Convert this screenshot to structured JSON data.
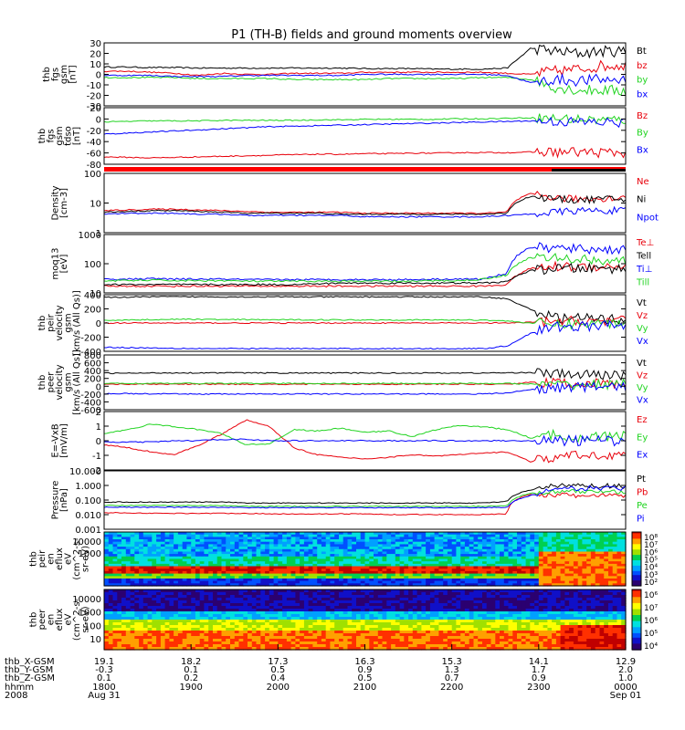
{
  "title": "P1 (TH-B) fields and ground moments overview",
  "colors": {
    "black": "#000000",
    "red": "#e8000b",
    "green": "#21d421",
    "blue": "#0000ff"
  },
  "chart_data": [
    {
      "type": "line",
      "ylabel": [
        "thb",
        "fgs",
        "gsm",
        "[nT]"
      ],
      "yticks": [
        "30",
        "20",
        "10",
        "0",
        "-10",
        "-20",
        "-30"
      ],
      "ylim": [
        -30,
        30
      ],
      "series": [
        {
          "name": "Bt",
          "color": "black",
          "values": [
            7,
            7,
            6.5,
            6.5,
            6,
            6,
            6,
            6,
            6,
            6,
            6,
            5.5,
            5.5,
            5.5,
            5,
            5,
            5,
            6,
            25,
            22,
            20,
            22,
            22
          ]
        },
        {
          "name": "bz",
          "color": "red",
          "values": [
            3,
            3,
            2,
            1,
            -1,
            1,
            0,
            0,
            1,
            1,
            1,
            2,
            2,
            2,
            2,
            2,
            2,
            1,
            0,
            3,
            5,
            8,
            9
          ]
        },
        {
          "name": "by",
          "color": "green",
          "values": [
            -3,
            -3,
            -3,
            -3,
            -4,
            -4,
            -4,
            -4,
            -5,
            -5,
            -5,
            -5,
            -4,
            -4,
            -4,
            -4,
            -3,
            -3,
            -5,
            -12,
            -15,
            -15,
            -16
          ]
        },
        {
          "name": "bx",
          "color": "blue",
          "values": [
            -1,
            -1,
            -1,
            -2,
            -2,
            -2,
            -1,
            -1,
            -1,
            -1,
            -1,
            0,
            0,
            0,
            0,
            0,
            0,
            -1,
            -8,
            -5,
            -6,
            -5,
            -5
          ]
        }
      ]
    },
    {
      "type": "line",
      "ylabel": [
        "thb",
        "fgs",
        "gsm",
        "tdso",
        "[nT]"
      ],
      "yticks": [
        "20",
        "0",
        "-20",
        "-40",
        "-60",
        "-80"
      ],
      "ylim": [
        -85,
        22
      ],
      "series": [
        {
          "name": "Bz",
          "color": "red",
          "values": [
            -71,
            -72,
            -73,
            -72,
            -71,
            -70,
            -69,
            -68,
            -67,
            -66,
            -66,
            -65,
            -65,
            -64,
            -64,
            -63,
            -63,
            -63,
            -62,
            -62,
            -62,
            -63,
            -63
          ]
        },
        {
          "name": "By",
          "color": "green",
          "values": [
            -5,
            -4,
            -3,
            -3,
            -3,
            -2,
            -2,
            -2,
            -2,
            -1,
            -1,
            0,
            0,
            0,
            0,
            1,
            1,
            2,
            3,
            2,
            0,
            -1,
            -1
          ]
        },
        {
          "name": "Bx",
          "color": "blue",
          "values": [
            -28,
            -26,
            -24,
            -22,
            -20,
            -18,
            -16,
            -14,
            -13,
            -12,
            -11,
            -10,
            -9,
            -8,
            -7,
            -6,
            -5,
            -4,
            -3,
            -4,
            -5,
            -6,
            -6
          ]
        }
      ]
    },
    {
      "type": "line",
      "log": true,
      "ylabel": [
        "Density",
        "[cm-3]"
      ],
      "yticks": [
        "100",
        "10",
        "1"
      ],
      "ylim": [
        0.5,
        400
      ],
      "series": [
        {
          "name": "Ne",
          "color": "red",
          "values": [
            6,
            6.5,
            7,
            7,
            6.5,
            6,
            5.5,
            5,
            5,
            5,
            5,
            4.5,
            4.5,
            4.5,
            4.5,
            4.5,
            4.5,
            5,
            40,
            25,
            22,
            24,
            25
          ]
        },
        {
          "name": "Ni",
          "color": "black",
          "values": [
            5,
            5.5,
            6,
            6,
            5.5,
            5,
            4.5,
            4.5,
            4.5,
            4.5,
            4,
            4,
            4,
            4,
            4,
            4,
            4,
            4.5,
            30,
            22,
            20,
            22,
            22
          ]
        },
        {
          "name": "Npot",
          "color": "blue",
          "values": [
            4,
            4.5,
            4.5,
            4.5,
            4,
            4,
            3.5,
            3.5,
            3.5,
            3.5,
            3.5,
            3,
            3,
            3,
            3,
            3,
            3,
            3.5,
            4,
            5,
            6,
            6,
            6
          ]
        }
      ]
    },
    {
      "type": "line",
      "log": true,
      "ylabel": [
        "moq13",
        "[eV]"
      ],
      "yticks": [
        "1000",
        "100",
        "10"
      ],
      "ylim": [
        8,
        1000
      ],
      "series": [
        {
          "name": "Te⊥",
          "color": "red",
          "values": [
            14,
            14,
            14,
            14,
            14,
            14,
            14,
            14,
            14,
            14,
            14,
            14,
            14,
            14,
            14,
            14,
            14,
            16,
            60,
            70,
            70,
            72,
            72
          ]
        },
        {
          "name": "Tell",
          "color": "black",
          "values": [
            16,
            16,
            16,
            16,
            16,
            16,
            16,
            16,
            16,
            17,
            18,
            18,
            18,
            18,
            18,
            18,
            18,
            20,
            50,
            60,
            60,
            60,
            60
          ]
        },
        {
          "name": "Ti⊥",
          "color": "blue",
          "values": [
            25,
            25,
            26,
            25,
            25,
            25,
            24,
            24,
            24,
            24,
            24,
            24,
            24,
            24,
            25,
            25,
            25,
            40,
            350,
            320,
            300,
            290,
            280
          ]
        },
        {
          "name": "Till",
          "color": "green",
          "values": [
            22,
            22,
            23,
            22,
            22,
            22,
            21,
            21,
            21,
            21,
            21,
            21,
            21,
            21,
            22,
            22,
            25,
            35,
            150,
            140,
            130,
            120,
            110
          ]
        }
      ]
    },
    {
      "type": "line",
      "ylabel": [
        "thb",
        "peir",
        "velocity",
        "gsm",
        "[km/s (All Qs)]"
      ],
      "yticks": [
        "400",
        "200",
        "0",
        "-200",
        "-400"
      ],
      "ylim": [
        -420,
        420
      ],
      "series": [
        {
          "name": "Vt",
          "color": "black",
          "values": [
            380,
            385,
            390,
            390,
            390,
            388,
            388,
            388,
            388,
            388,
            388,
            388,
            388,
            388,
            388,
            388,
            388,
            360,
            200,
            80,
            70,
            60,
            55
          ]
        },
        {
          "name": "Vz",
          "color": "red",
          "values": [
            0,
            0,
            0,
            0,
            0,
            0,
            0,
            0,
            0,
            0,
            0,
            0,
            0,
            0,
            0,
            0,
            0,
            0,
            10,
            20,
            30,
            30,
            30
          ]
        },
        {
          "name": "Vy",
          "color": "green",
          "values": [
            40,
            45,
            50,
            55,
            55,
            50,
            50,
            48,
            48,
            48,
            46,
            46,
            46,
            46,
            45,
            45,
            45,
            30,
            0,
            -20,
            -10,
            -5,
            0
          ]
        },
        {
          "name": "Vx",
          "color": "blue",
          "values": [
            -360,
            -365,
            -370,
            -375,
            -378,
            -380,
            -380,
            -380,
            -380,
            -380,
            -380,
            -380,
            -380,
            -380,
            -380,
            -380,
            -380,
            -340,
            -150,
            -60,
            -50,
            -40,
            -30
          ]
        }
      ]
    },
    {
      "type": "line",
      "ylabel": [
        "thb",
        "peer",
        "velocity",
        "gsm",
        "[km/s (All Qs)]"
      ],
      "yticks": [
        "800",
        "600",
        "400",
        "200",
        "0",
        "-200",
        "-400",
        "-600"
      ],
      "ylim": [
        -700,
        800
      ],
      "series": [
        {
          "name": "Vt",
          "color": "black",
          "values": [
            300,
            300,
            305,
            310,
            310,
            310,
            310,
            305,
            305,
            305,
            305,
            305,
            305,
            305,
            305,
            305,
            305,
            310,
            320,
            280,
            260,
            250,
            250
          ]
        },
        {
          "name": "Vz",
          "color": "red",
          "values": [
            0,
            0,
            0,
            0,
            0,
            0,
            0,
            0,
            0,
            0,
            0,
            0,
            0,
            0,
            0,
            0,
            0,
            0,
            50,
            30,
            20,
            15,
            10
          ]
        },
        {
          "name": "Vy",
          "color": "green",
          "values": [
            20,
            20,
            20,
            20,
            20,
            20,
            20,
            20,
            20,
            20,
            20,
            20,
            20,
            20,
            20,
            20,
            20,
            20,
            0,
            -20,
            -10,
            -5,
            0
          ]
        },
        {
          "name": "Vx",
          "color": "blue",
          "values": [
            -260,
            -260,
            -265,
            -270,
            -270,
            -270,
            -270,
            -268,
            -268,
            -268,
            -268,
            -268,
            -268,
            -268,
            -268,
            -268,
            -268,
            -240,
            -150,
            -100,
            -80,
            -70,
            -70
          ]
        }
      ]
    },
    {
      "type": "line",
      "ylabel": [
        "E=-VxB",
        "[mV/m]"
      ],
      "yticks": [
        "2",
        "1",
        "0",
        "-1",
        "-2"
      ],
      "ylim": [
        -2.1,
        2.1
      ],
      "series": [
        {
          "name": "Ez",
          "color": "red",
          "values": [
            -0.3,
            -0.5,
            -0.8,
            -1.0,
            -0.3,
            0.5,
            1.5,
            1.0,
            -0.5,
            -1.0,
            -1.2,
            -1.3,
            -1.2,
            -1.0,
            -1.1,
            -1.0,
            -0.9,
            -0.8,
            -1.5,
            -1.2,
            -1.1,
            -1.0,
            -1.0
          ]
        },
        {
          "name": "Ey",
          "color": "green",
          "values": [
            0.5,
            0.8,
            1.2,
            1.0,
            0.8,
            0.5,
            -0.3,
            -0.2,
            0.8,
            0.7,
            0.9,
            0.6,
            0.7,
            0.3,
            0.8,
            1.1,
            1.0,
            0.8,
            0.2,
            0.4,
            0.3,
            0.3,
            0.3
          ]
        },
        {
          "name": "Ex",
          "color": "blue",
          "values": [
            -0.1,
            -0.1,
            -0.1,
            0.0,
            0.0,
            0.1,
            0.1,
            0.0,
            0.0,
            0.0,
            0.0,
            0.0,
            0.0,
            0.0,
            0.0,
            0.0,
            0.0,
            0.0,
            0.0,
            0.0,
            0.0,
            0.0,
            0.0
          ]
        }
      ]
    },
    {
      "type": "line",
      "log": true,
      "ylabel": [
        "Pressure",
        "[nPa]"
      ],
      "yticks": [
        "10.000",
        "1.000",
        "0.100",
        "0.010",
        "0.001"
      ],
      "ylim": [
        0.0008,
        12
      ],
      "series": [
        {
          "name": "Pt",
          "color": "black",
          "values": [
            0.07,
            0.07,
            0.07,
            0.07,
            0.07,
            0.07,
            0.06,
            0.06,
            0.06,
            0.06,
            0.06,
            0.06,
            0.06,
            0.06,
            0.06,
            0.06,
            0.06,
            0.08,
            0.5,
            1.0,
            1.0,
            1.0,
            1.0
          ]
        },
        {
          "name": "Pb",
          "color": "red",
          "values": [
            0.012,
            0.012,
            0.011,
            0.011,
            0.011,
            0.011,
            0.011,
            0.01,
            0.01,
            0.01,
            0.01,
            0.01,
            0.009,
            0.009,
            0.009,
            0.009,
            0.009,
            0.01,
            0.25,
            0.22,
            0.2,
            0.2,
            0.2
          ]
        },
        {
          "name": "Pe",
          "color": "green",
          "values": [
            0.04,
            0.04,
            0.04,
            0.04,
            0.04,
            0.04,
            0.035,
            0.035,
            0.035,
            0.035,
            0.035,
            0.035,
            0.035,
            0.035,
            0.035,
            0.035,
            0.035,
            0.04,
            0.3,
            0.35,
            0.4,
            0.4,
            0.4
          ]
        },
        {
          "name": "Pi",
          "color": "blue",
          "values": [
            0.03,
            0.03,
            0.03,
            0.03,
            0.03,
            0.03,
            0.028,
            0.028,
            0.028,
            0.028,
            0.028,
            0.028,
            0.028,
            0.028,
            0.028,
            0.028,
            0.028,
            0.03,
            0.2,
            0.5,
            0.7,
            0.7,
            0.7
          ]
        }
      ]
    },
    {
      "type": "heatmap",
      "ylabel": [
        "thb",
        "peir",
        "en",
        "eflux",
        "eV",
        "(cm^2-s-",
        "sr-eV)"
      ],
      "yticks": [
        "10000",
        "1000"
      ],
      "colorbar_ticks": [
        "10⁸",
        "10⁷",
        "10⁶",
        "10⁵",
        "10⁴",
        "10³",
        "10²"
      ]
    },
    {
      "type": "heatmap",
      "ylabel": [
        "thb",
        "peer",
        "en",
        "eflux",
        "eV",
        "(cm^2-s-",
        "sr-eV)"
      ],
      "yticks": [
        "10000",
        "1000",
        "100",
        "10"
      ],
      "colorbar_ticks": [
        "10⁶",
        "10⁷",
        "10⁶",
        "10⁵",
        "10⁴"
      ]
    }
  ],
  "xaxis": {
    "row_labels": [
      "thb_X-GSM",
      "thb_Y-GSM",
      "thb_Z-GSM",
      "hhmm",
      "2008"
    ],
    "ticks": [
      {
        "x": "19.1",
        "y": "-0.3",
        "z": "0.1",
        "hhmm": "1800",
        "date": "Aug 31"
      },
      {
        "x": "18.2",
        "y": "0.1",
        "z": "0.2",
        "hhmm": "1900",
        "date": ""
      },
      {
        "x": "17.3",
        "y": "0.5",
        "z": "0.4",
        "hhmm": "2000",
        "date": ""
      },
      {
        "x": "16.3",
        "y": "0.9",
        "z": "0.5",
        "hhmm": "2100",
        "date": ""
      },
      {
        "x": "15.3",
        "y": "1.3",
        "z": "0.7",
        "hhmm": "2200",
        "date": ""
      },
      {
        "x": "14.1",
        "y": "1.7",
        "z": "0.9",
        "hhmm": "2300",
        "date": ""
      },
      {
        "x": "12.9",
        "y": "2.0",
        "z": "1.0",
        "hhmm": "0000",
        "date": "Sep 01"
      }
    ]
  }
}
